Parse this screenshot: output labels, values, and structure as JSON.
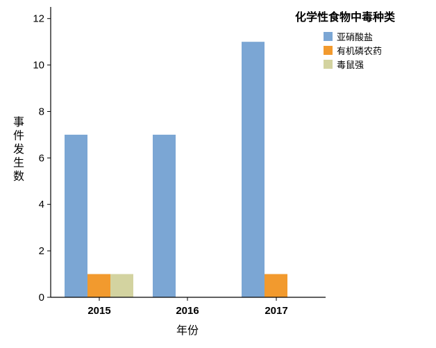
{
  "chart_data": {
    "type": "bar",
    "categories": [
      "2015",
      "2016",
      "2017"
    ],
    "series": [
      {
        "name": "亚硝酸盐",
        "values": [
          7,
          7,
          11
        ],
        "color": "#7ba6d4"
      },
      {
        "name": "有机磷农药",
        "values": [
          1,
          0,
          1
        ],
        "color": "#f29a2e"
      },
      {
        "name": "毒鼠强",
        "values": [
          1,
          0,
          0
        ],
        "color": "#d3d3a0"
      }
    ],
    "title": "",
    "xlabel": "年份",
    "ylabel": "事件发生数",
    "ylim": [
      0,
      12.5
    ],
    "yticks": [
      0,
      2,
      4,
      6,
      8,
      10,
      12
    ],
    "legend": {
      "title": "化学性食物中毒种类",
      "position": "top-right"
    },
    "grid": false
  }
}
